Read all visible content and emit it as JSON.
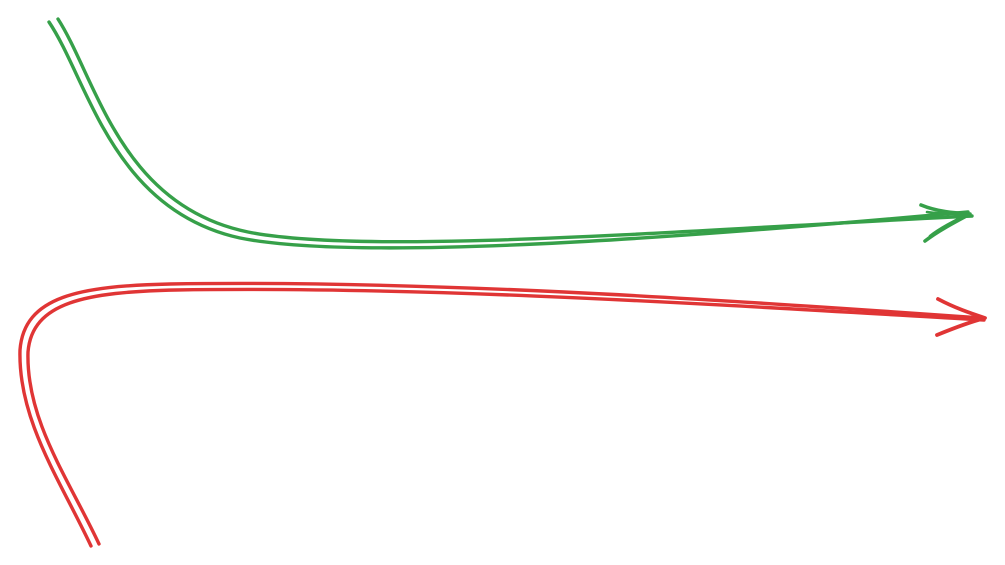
{
  "colors": {
    "background": "#ffffff",
    "green_arrow": "#36a049",
    "red_arrow": "#e03535"
  },
  "arrows": [
    {
      "id": "green-arrow",
      "color_key": "green_arrow",
      "style": "hand-drawn double line",
      "head": "open"
    },
    {
      "id": "red-arrow",
      "color_key": "red_arrow",
      "style": "hand-drawn double line",
      "head": "open"
    }
  ]
}
